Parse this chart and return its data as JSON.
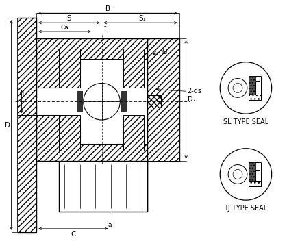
{
  "bg_color": "#ffffff",
  "line_color": "#000000",
  "labels": {
    "B": "B",
    "S": "S",
    "S1": "S₁",
    "Ca": "Ca",
    "f": "f",
    "G": "G",
    "2ds": "2-ds",
    "D": "D",
    "d": "d",
    "D2": "D₂",
    "C": "C",
    "a": "a",
    "SL": "SL TYPE SEAL",
    "TJ": "TJ TYPE SEAL"
  },
  "figsize": [
    4.39,
    3.65
  ],
  "dpi": 100
}
